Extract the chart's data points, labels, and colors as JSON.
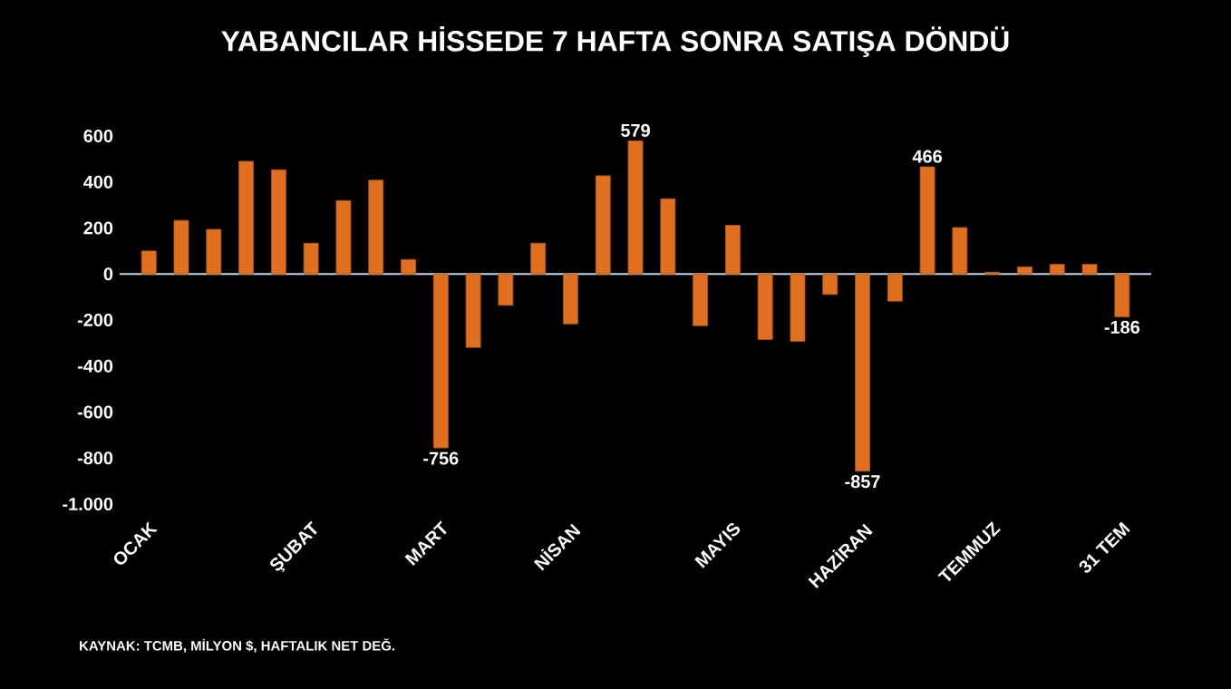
{
  "chart_data": {
    "type": "bar",
    "title": "YABANCILAR HİSSEDE 7 HAFTA SONRA SATIŞA DÖNDÜ",
    "categories": [
      "OCAK",
      null,
      null,
      null,
      null,
      "ŞUBAT",
      null,
      null,
      null,
      "MART",
      null,
      null,
      null,
      "NİSAN",
      null,
      null,
      null,
      null,
      "MAYIS",
      null,
      null,
      null,
      "HAZİRAN",
      null,
      null,
      null,
      "TEMMUZ",
      null,
      null,
      null,
      "31 TEM"
    ],
    "values": [
      100,
      233,
      194,
      490,
      453,
      134,
      319,
      408,
      63,
      -756,
      -319,
      -136,
      134,
      -217,
      427,
      579,
      327,
      -225,
      212,
      -285,
      -293,
      -89,
      -857,
      -118,
      466,
      202,
      8,
      31,
      42,
      42,
      -186
    ],
    "value_labels": [
      null,
      null,
      null,
      null,
      null,
      null,
      null,
      null,
      null,
      "-756",
      null,
      null,
      null,
      null,
      null,
      "579",
      null,
      null,
      null,
      null,
      null,
      null,
      "-857",
      null,
      "466",
      null,
      null,
      null,
      null,
      null,
      "-186"
    ],
    "color": "#e0701f",
    "ylim": [
      -1000,
      600
    ],
    "yticks": [
      {
        "value": -1000,
        "label": "-1.000"
      },
      -800,
      -600,
      -400,
      -200,
      0,
      200,
      400,
      600
    ],
    "grid": false,
    "ref_lines": [
      {
        "axis": "y",
        "value": 0,
        "color": "#bed7eb"
      }
    ],
    "annotations": [
      "KAYNAK: TCMB, MİLYON $, HAFTALIK NET DEĞ."
    ]
  }
}
